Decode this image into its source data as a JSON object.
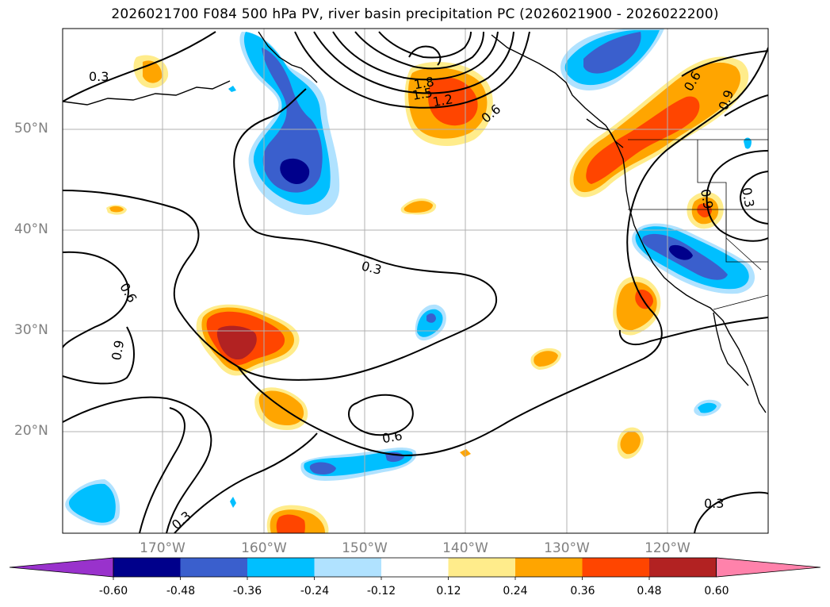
{
  "title": "2026021700 F084 500 hPa PV, river basin precipitation PC (2026021900 - 2026022200)",
  "map": {
    "lat_ticks": [
      "50°N",
      "40°N",
      "30°N",
      "20°N"
    ],
    "lon_ticks": [
      "170°W",
      "160°W",
      "150°W",
      "140°W",
      "130°W",
      "120°W"
    ],
    "contour_labels": [
      "0.3",
      "0.6",
      "0.9",
      "1.2",
      "1.5",
      "1.8"
    ],
    "gridline_color": "#b0b0b0",
    "coastline_color": "#000000"
  },
  "colorbar": {
    "levels": [
      "-0.60",
      "-0.48",
      "-0.36",
      "-0.24",
      "-0.12",
      "0.12",
      "0.24",
      "0.36",
      "0.48",
      "0.60"
    ],
    "colors": [
      "#9932cc",
      "#00008b",
      "#3a5fcd",
      "#00bfff",
      "#b0e2ff",
      "#ffffff",
      "#ffec8b",
      "#ffa500",
      "#ff4500",
      "#b22222",
      "#ff82ab"
    ],
    "extend": "both"
  }
}
